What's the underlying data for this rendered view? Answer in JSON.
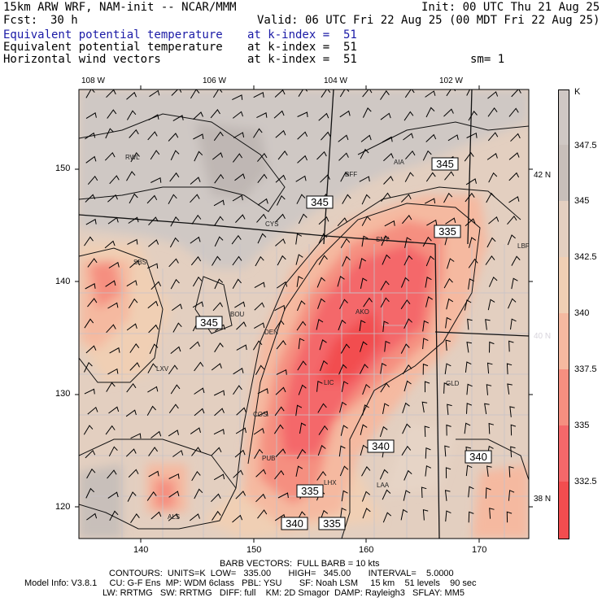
{
  "header": {
    "model": "15km ARW WRF, NAM-init -- NCAR/MMM",
    "init": "Init: 00 UTC Thu 21 Aug 25",
    "fcst_label": "Fcst:",
    "fcst_value": "30 h",
    "valid": "Valid: 06 UTC Fri 22 Aug 25 (00 MDT Fri 22 Aug 25)",
    "fields": [
      {
        "name": "Equivalent potential temperature",
        "level": "at k-index =  51",
        "color": "#1a1aa6"
      },
      {
        "name": "Equivalent potential temperature",
        "level": "at k-index =  51",
        "color": "#000000"
      },
      {
        "name": "Horizontal wind vectors",
        "level": "at k-index =  51",
        "color": "#000000"
      }
    ],
    "smoothing": "sm= 1"
  },
  "axes": {
    "lon_labels": [
      "108 W",
      "106 W",
      "104 W",
      "102 W"
    ],
    "lat_labels": [
      "42 N",
      "40 N",
      "38 N"
    ],
    "x_ticks": [
      "140",
      "150",
      "160",
      "170"
    ],
    "y_ticks": [
      "150",
      "140",
      "130",
      "120"
    ]
  },
  "stations": [
    "RWL",
    "BFF",
    "AIA",
    "CYS",
    "SNY",
    "LBF",
    "SBS",
    "BOU",
    "DEN",
    "AKO",
    "LIC",
    "GLD",
    "LXV",
    "COS",
    "PUB",
    "LHX",
    "LAA",
    "ALS"
  ],
  "contour_labels": [
    "345",
    "345",
    "335",
    "345",
    "340",
    "340",
    "335",
    "340",
    "335"
  ],
  "colorbar": {
    "unit": "K",
    "labels": [
      "347.5",
      "345",
      "342.5",
      "340",
      "337.5",
      "335",
      "332.5"
    ],
    "colors": [
      "#cfc8c4",
      "#c8bfba",
      "#e3cfc0",
      "#f0cfb4",
      "#f5b9a0",
      "#f58f80",
      "#f4686a",
      "#f24d4f"
    ]
  },
  "footer": {
    "barb": "BARB VECTORS:  FULL BARB = 10 kts",
    "contours": "CONTOURS:  UNITS=K  LOW=   335.00       HIGH=   345.00       INTERVAL=    5.0000",
    "model_info": "Model Info: V3.8.1     CU: G-F Ens  MP: WDM 6class   PBL: YSU       SF: Noah LSM     15 km    51 levels    90 sec",
    "physics": "LW: RRTMG   SW: RRTMG   DIFF: full    KM: 2D Smagor  DAMP: Rayleigh3   SFLAY: MM5"
  }
}
